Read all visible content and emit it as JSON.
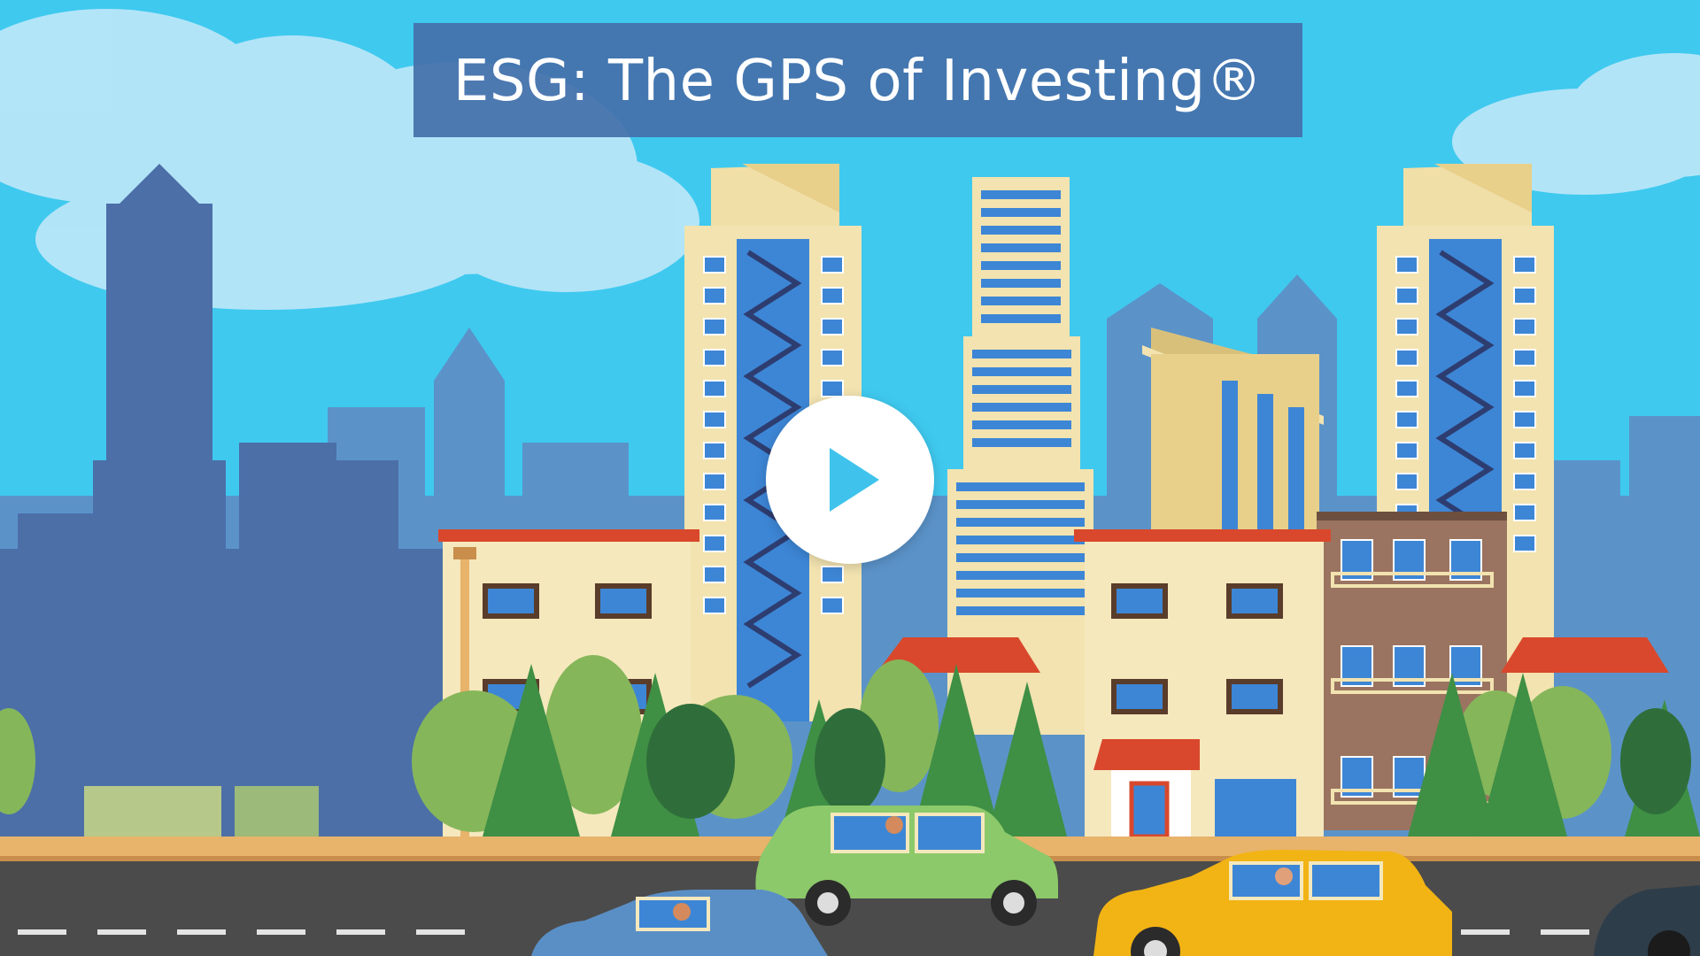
{
  "video": {
    "title": "ESG: The GPS of Investing®",
    "play_label": "Play video",
    "colors": {
      "sky": "#3fc9ef",
      "banner": "#4470aa",
      "skyline_back": "#5b93c9",
      "skyline_front": "#4c6fa8",
      "tower_cream": "#f2e3b0",
      "window_blue": "#3d86d6",
      "roof_red": "#d9482c",
      "tree_green": "#3f8f45",
      "tree_light": "#86b65a",
      "road": "#4b4b4b",
      "curb": "#e8b36a",
      "car_green": "#8cc96a",
      "car_yellow": "#f2b414",
      "car_blue": "#5a8fc6",
      "play_icon": "#3fc3ec"
    }
  }
}
